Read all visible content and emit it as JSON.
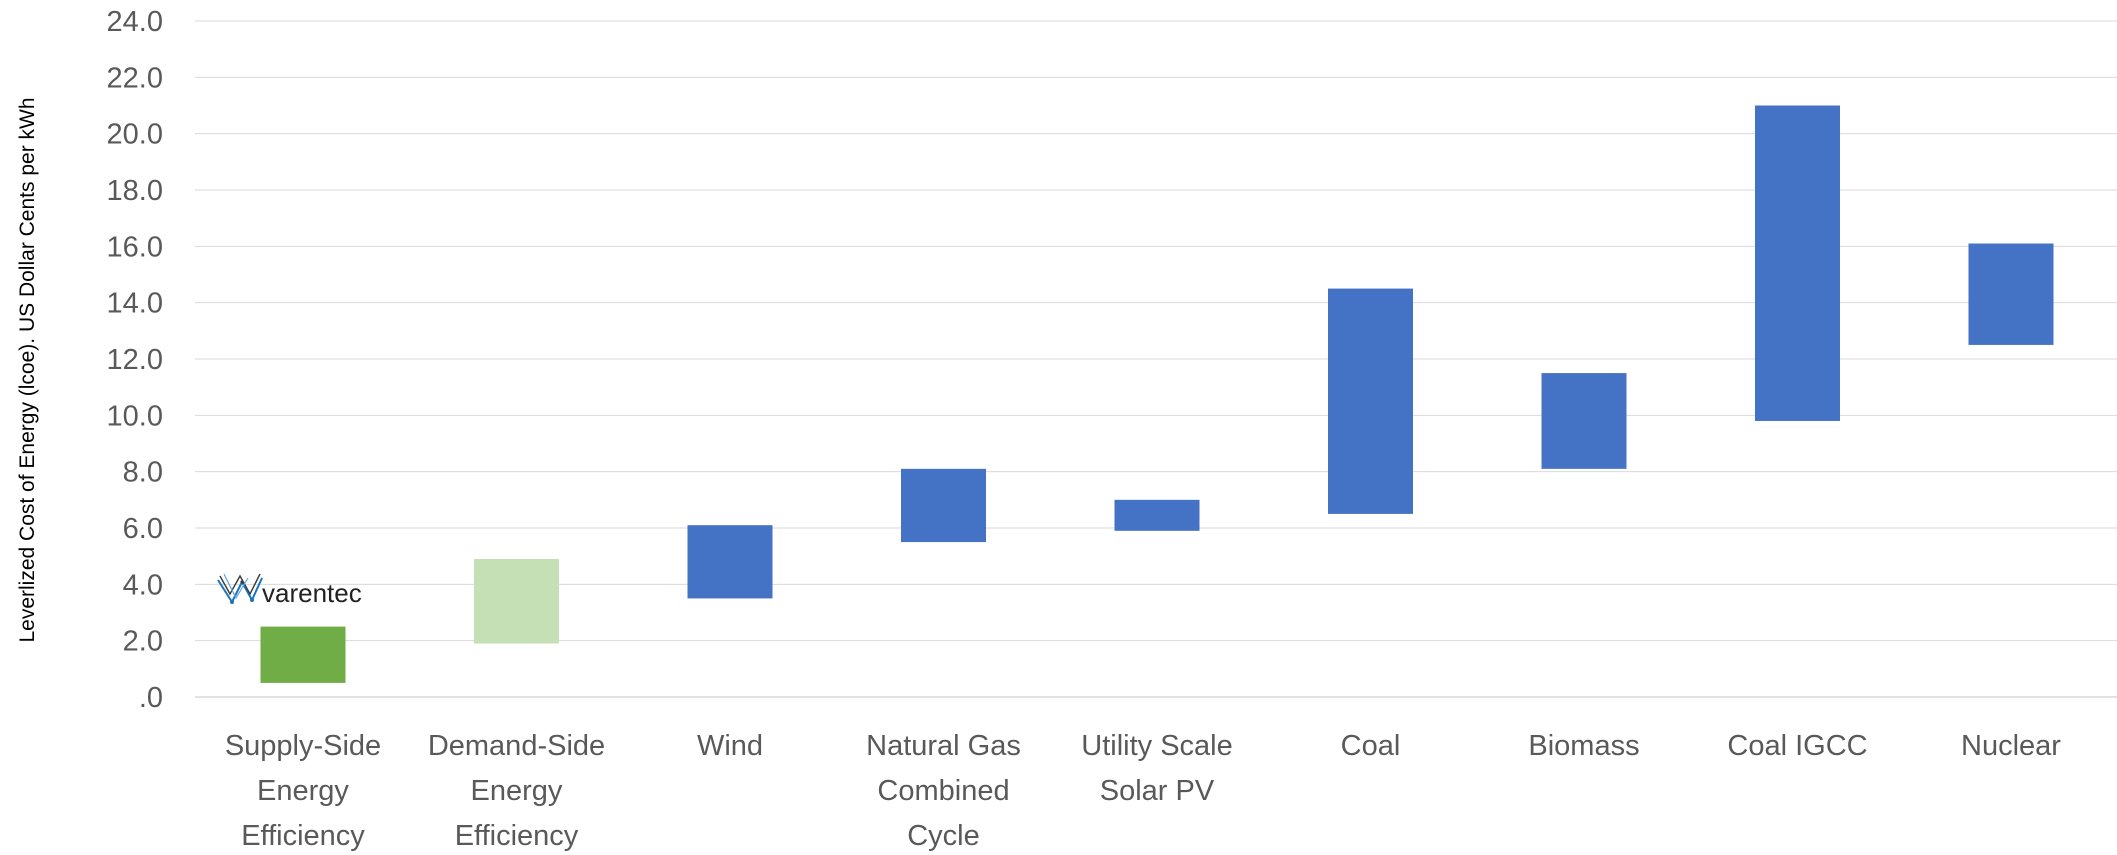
{
  "chart_data": {
    "type": "bar",
    "subtype": "floating-range",
    "title": "",
    "ylabel": "Leverlized Cost of Energy (lcoe). US Dollar Cents per kWh",
    "xlabel": "",
    "ylim": [
      0,
      24
    ],
    "yticks": [
      ".0",
      "2.0",
      "4.0",
      "6.0",
      "8.0",
      "10.0",
      "12.0",
      "14.0",
      "16.0",
      "18.0",
      "20.0",
      "22.0",
      "24.0"
    ],
    "grid": true,
    "legend": "none",
    "categories": [
      [
        "Supply-Side",
        "Energy",
        "Efficiency"
      ],
      [
        "Demand-Side",
        "Energy",
        "Efficiency"
      ],
      [
        "Wind"
      ],
      [
        "Natural Gas",
        "Combined",
        "Cycle"
      ],
      [
        "Utility Scale",
        "Solar PV"
      ],
      [
        "Coal"
      ],
      [
        "Biomass"
      ],
      [
        "Coal IGCC"
      ],
      [
        "Nuclear"
      ]
    ],
    "low": [
      0.5,
      1.9,
      3.5,
      5.5,
      5.9,
      6.5,
      8.1,
      9.8,
      12.5
    ],
    "high": [
      2.5,
      4.9,
      6.1,
      8.1,
      7.0,
      14.5,
      11.5,
      21.0,
      16.1
    ],
    "colors": [
      "#70ad47",
      "#c5e0b4",
      "#4472c4",
      "#4472c4",
      "#4472c4",
      "#4472c4",
      "#4472c4",
      "#4472c4",
      "#4472c4"
    ]
  },
  "logo": {
    "text": "varentec",
    "icon": "varentec-mesh-logo-icon"
  },
  "style": {
    "grid_color": "#d9d9d9"
  }
}
